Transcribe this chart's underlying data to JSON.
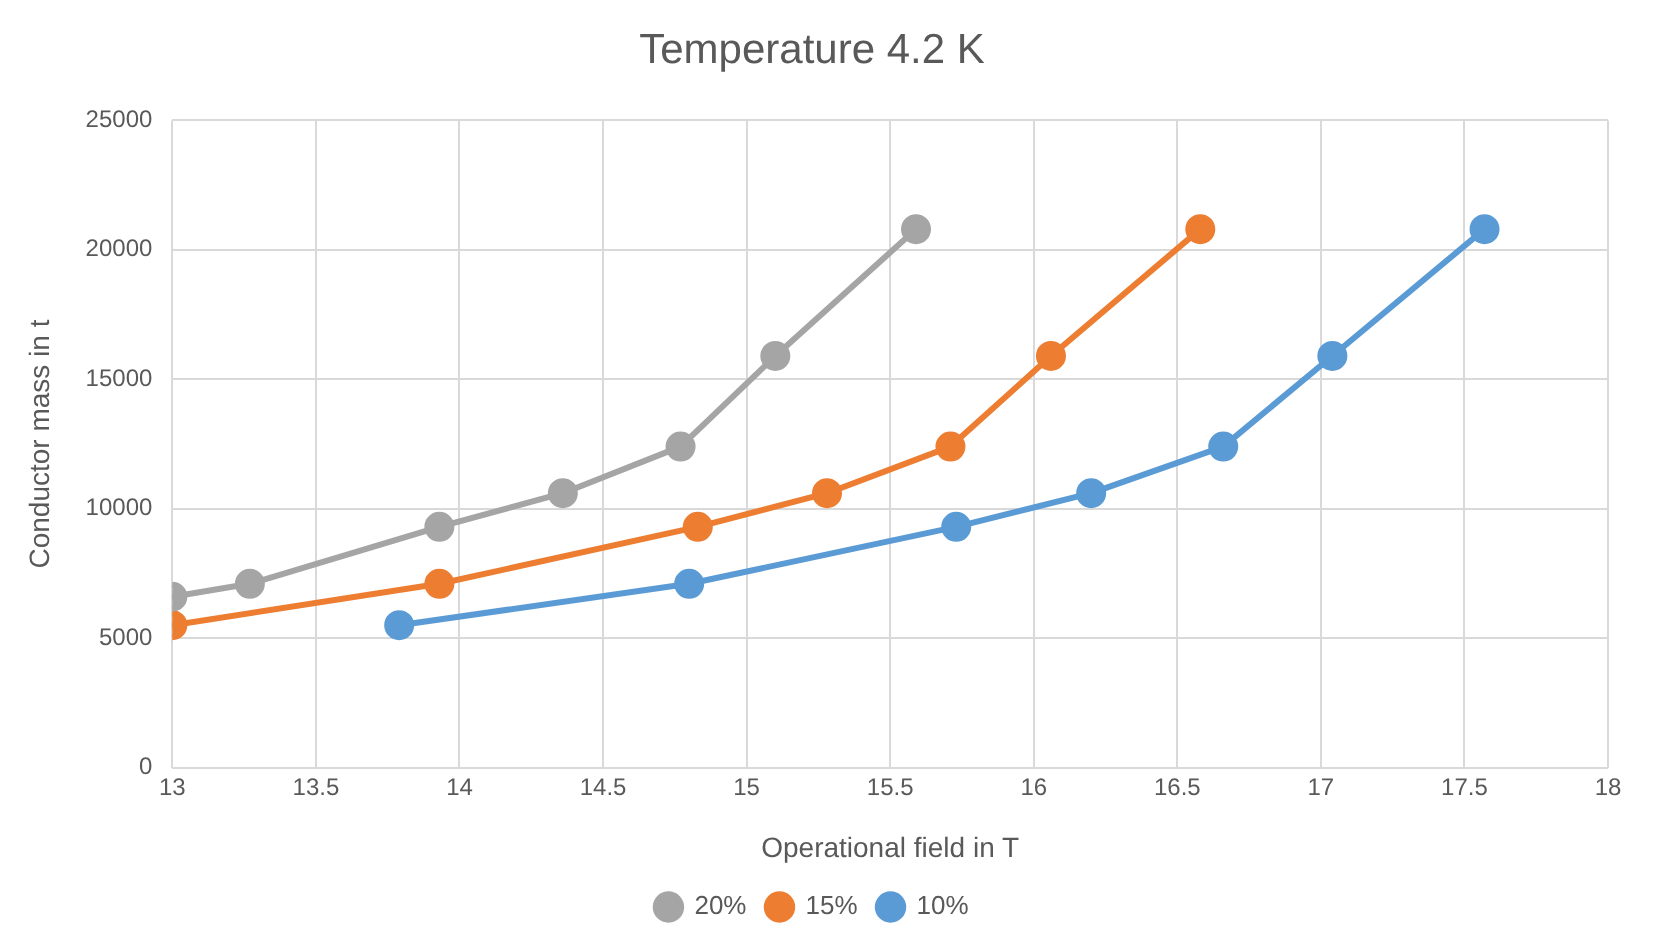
{
  "chart_data": {
    "type": "line",
    "title": "Temperature 4.2 K",
    "xlabel": "Operational field in T",
    "ylabel": "Conductor mass in t",
    "xlim": [
      13,
      18
    ],
    "xticks": [
      13,
      13.5,
      14,
      14.5,
      15,
      15.5,
      16,
      16.5,
      17,
      17.5,
      18
    ],
    "ylim": [
      0,
      25000
    ],
    "yticks": [
      0,
      5000,
      10000,
      15000,
      20000,
      25000
    ],
    "grid": true,
    "legend": "bottom",
    "marker": "circle",
    "line_style": "solid",
    "series": [
      {
        "name": "20%",
        "color": "#a5a5a5",
        "x": [
          13,
          13.27,
          13.93,
          14.36,
          14.77,
          15.1,
          15.59
        ],
        "values": [
          6600,
          7100,
          9300,
          10600,
          12400,
          15900,
          20800
        ]
      },
      {
        "name": "15%",
        "color": "#ed7d31",
        "x": [
          13,
          13.93,
          14.83,
          15.28,
          15.71,
          16.06,
          16.58
        ],
        "values": [
          5500,
          7100,
          9300,
          10600,
          12400,
          15900,
          20800
        ]
      },
      {
        "name": "10%",
        "color": "#5b9bd5",
        "x": [
          13.79,
          14.8,
          15.73,
          16.2,
          16.66,
          17.04,
          17.57
        ],
        "values": [
          5500,
          7100,
          9300,
          10600,
          12400,
          15900,
          20800
        ]
      }
    ]
  }
}
